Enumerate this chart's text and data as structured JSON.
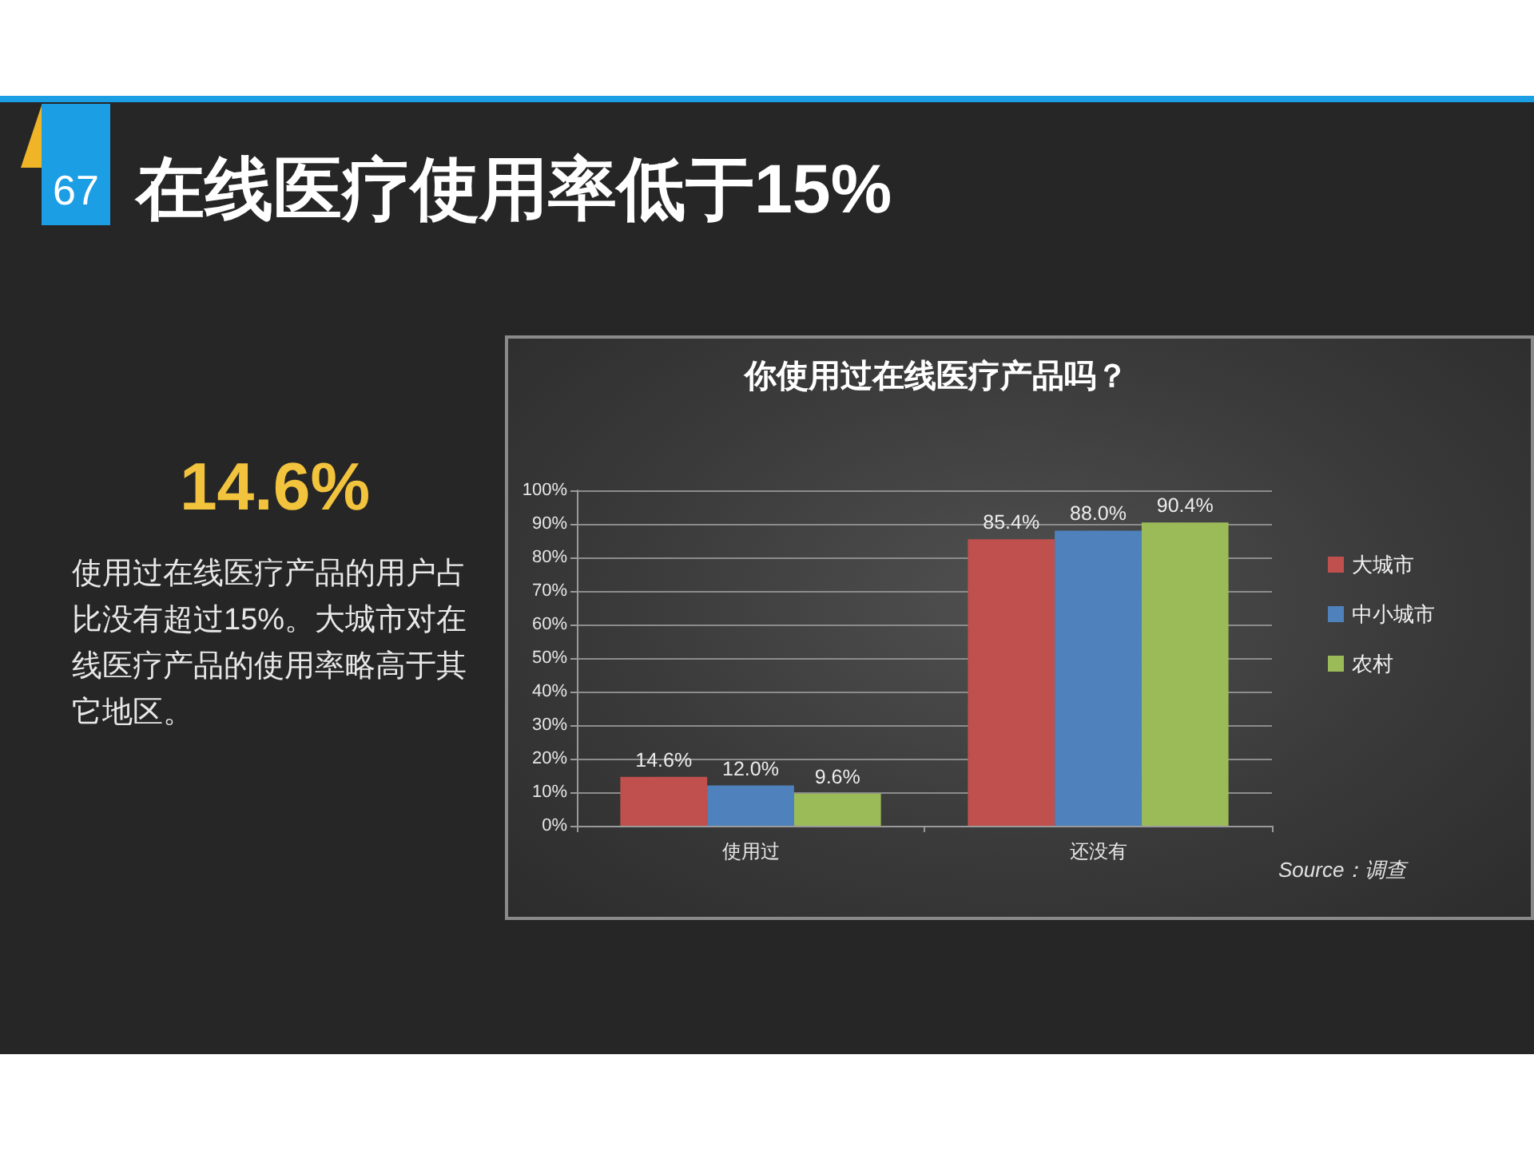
{
  "chart_data": {
    "type": "bar",
    "title": "在线医疗使用率低于15%",
    "subtitle": "你使用过在线医疗产品吗？",
    "categories": [
      "使用过",
      "还没有"
    ],
    "series": [
      {
        "name": "大城市",
        "color": "#c0504d",
        "values": [
          14.6,
          85.4
        ],
        "value_labels": [
          "14.6%",
          "85.4%"
        ]
      },
      {
        "name": "中小城市",
        "color": "#4f81bd",
        "values": [
          12.0,
          88.0
        ],
        "value_labels": [
          "12.0%",
          "88.0%"
        ]
      },
      {
        "name": "农村",
        "color": "#9bbb59",
        "values": [
          9.6,
          90.4
        ],
        "value_labels": [
          "9.6%",
          "90.4%"
        ]
      }
    ],
    "ylim": [
      0,
      100
    ],
    "yticks": [
      {
        "value": 0,
        "label": "0%"
      },
      {
        "value": 10,
        "label": "10%"
      },
      {
        "value": 20,
        "label": "20%"
      },
      {
        "value": 30,
        "label": "30%"
      },
      {
        "value": 40,
        "label": "40%"
      },
      {
        "value": 50,
        "label": "50%"
      },
      {
        "value": 60,
        "label": "60%"
      },
      {
        "value": 70,
        "label": "70%"
      },
      {
        "value": 80,
        "label": "80%"
      },
      {
        "value": 90,
        "label": "90%"
      },
      {
        "value": 100,
        "label": "100%"
      }
    ],
    "grid": "y",
    "legend": "right",
    "annotations": [
      "67",
      "14.6%",
      "使用过在线医疗产品的用户占比没有超过15%。大城市对在线医疗产品的使用率略高于其它地区。",
      "Source：调查"
    ]
  }
}
